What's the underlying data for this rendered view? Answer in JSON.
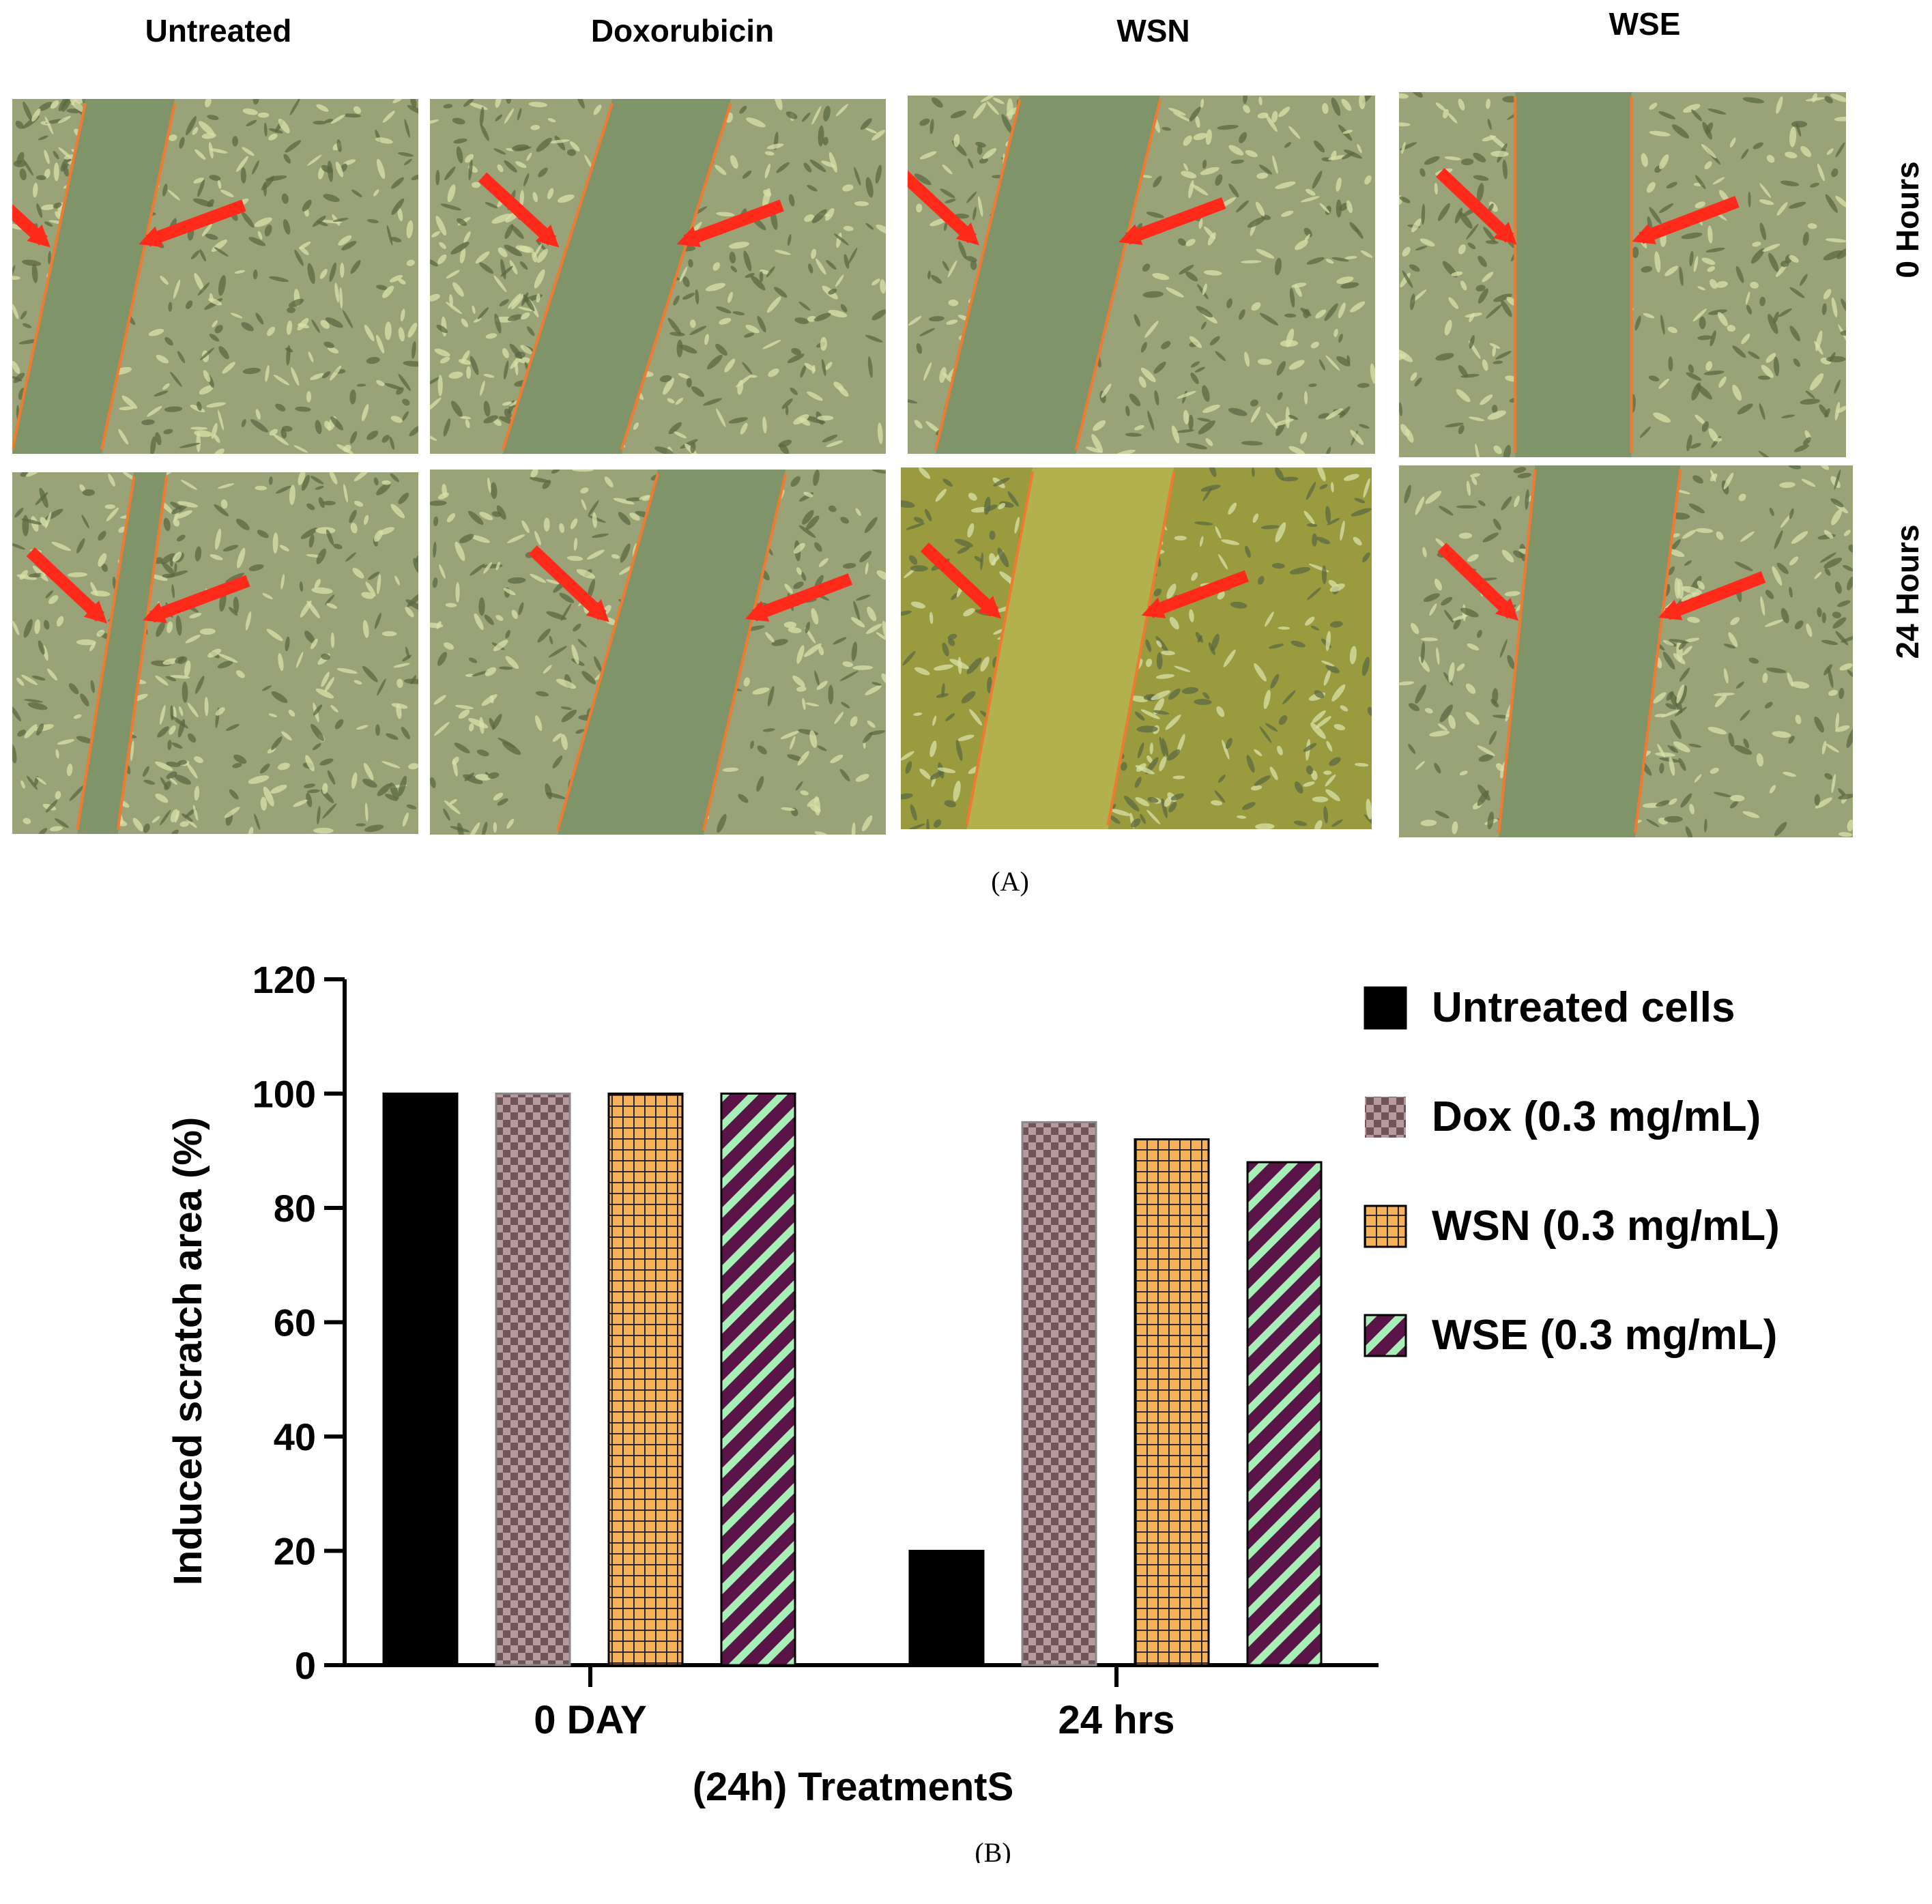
{
  "figure_a": {
    "columns": [
      "Untreated",
      "Doxorubicin",
      "WSN",
      "WSE"
    ],
    "rows": [
      "0 Hours",
      "24 Hours"
    ],
    "label": "(A)"
  },
  "figure_b_label": "(B)",
  "colors": {
    "untreated": "#000000",
    "dox_a": "#b79a9d",
    "dox_b": "#6f5557",
    "wsn_fill": "#f7b15a",
    "wsn_grid": "#1a1a1a",
    "wse_a": "#5a1448",
    "wse_b": "#a6f0b8",
    "micro_green": "#9aa277",
    "micro_dark": "#5b6a42",
    "arrow_red": "#ff2a1a",
    "line_orange": "#f07a30"
  },
  "chart_data": {
    "type": "bar",
    "categories": [
      "0 DAY",
      "24 hrs"
    ],
    "series": [
      {
        "name": "Untreated cells",
        "values": [
          100,
          20
        ],
        "pattern": "solid"
      },
      {
        "name": "Dox (0.3 mg/mL)",
        "values": [
          100,
          95
        ],
        "pattern": "checker"
      },
      {
        "name": "WSN (0.3 mg/mL)",
        "values": [
          100,
          92
        ],
        "pattern": "grid"
      },
      {
        "name": "WSE (0.3 mg/mL)",
        "values": [
          100,
          88
        ],
        "pattern": "stripes"
      }
    ],
    "xlabel": "(24h) TreatmentS",
    "ylabel": "Induced scratch area (%)",
    "ylim": [
      0,
      120
    ],
    "yticks": [
      "0",
      "20",
      "40",
      "60",
      "80",
      "100",
      "120"
    ],
    "legend_position": "top-right"
  }
}
